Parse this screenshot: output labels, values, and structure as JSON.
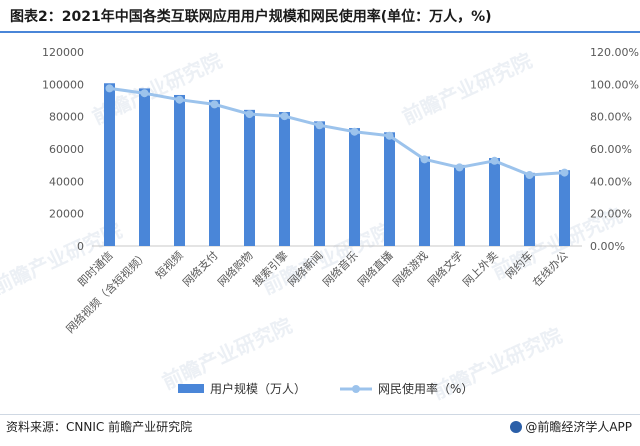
{
  "title": "图表2：2021年中国各类互联网应用用户规模和网民使用率(单位：万人，%)",
  "source": "资料来源：CNNIC 前瞻产业研究院",
  "brand": "@前瞻经济学人APP",
  "watermark": "前瞻产业研究院",
  "colors": {
    "bar": "#4a86d8",
    "line": "#9cc3ec",
    "axis": "#c9c9c9",
    "text": "#595959",
    "title_rule": "#4a86d8"
  },
  "chart_data": {
    "type": "bar",
    "categories": [
      "即时通信",
      "网络视频（含短视频）",
      "短视频",
      "网络支付",
      "网络购物",
      "搜索引擎",
      "网络新闻",
      "网络音乐",
      "网络直播",
      "网络游戏",
      "网络文学",
      "网上外卖",
      "网约车",
      "在线办公"
    ],
    "series": [
      {
        "name": "用户规模（万人）",
        "type": "bar",
        "axis": "left",
        "values": [
          100666,
          97471,
          93415,
          90363,
          84210,
          82884,
          77109,
          72946,
          70337,
          55354,
          50159,
          54416,
          45261,
          46884
        ]
      },
      {
        "name": "网民使用率（%）",
        "type": "line",
        "axis": "right",
        "values": [
          97.5,
          94.5,
          90.5,
          87.6,
          81.6,
          80.3,
          74.7,
          70.7,
          68.2,
          53.6,
          48.6,
          52.7,
          43.9,
          45.4
        ]
      }
    ],
    "ylim_left": [
      0,
      120000
    ],
    "yticks_left": [
      "0",
      "20000",
      "40000",
      "60000",
      "80000",
      "100000",
      "120000"
    ],
    "ylim_right": [
      0,
      120
    ],
    "yticks_right": [
      "0.00%",
      "20.00%",
      "40.00%",
      "60.00%",
      "80.00%",
      "100.00%",
      "120.00%"
    ],
    "grid": false,
    "legend_position": "bottom"
  }
}
